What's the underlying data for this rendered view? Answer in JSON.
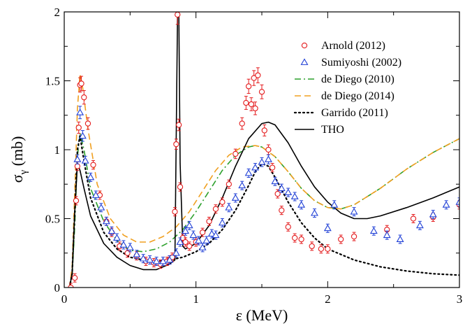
{
  "chart_data": {
    "type": "scatter",
    "xlabel": "ε  (MeV)",
    "ylabel_main": "σ",
    "ylabel_sub": "γ",
    "ylabel_unit": "(mb)",
    "xlim": [
      0,
      3
    ],
    "ylim": [
      0,
      2
    ],
    "x_ticks": [
      0,
      1,
      2,
      3
    ],
    "x_tick_labels": [
      "0",
      "1",
      "2",
      "3"
    ],
    "y_ticks": [
      0,
      0.5,
      1,
      1.5,
      2
    ],
    "y_tick_labels": [
      "0",
      "0.5",
      "1",
      "1.5",
      "2"
    ],
    "grid": false,
    "legend_position": "top-right",
    "series": [
      {
        "name": "Arnold (2012)",
        "kind": "points",
        "marker": "circle",
        "color": "#e41a1c",
        "x": [
          0.05,
          0.08,
          0.09,
          0.1,
          0.11,
          0.12,
          0.13,
          0.15,
          0.18,
          0.22,
          0.27,
          0.32,
          0.36,
          0.42,
          0.48,
          0.55,
          0.62,
          0.68,
          0.73,
          0.78,
          0.8,
          0.82,
          0.84,
          0.85,
          0.86,
          0.87,
          0.88,
          0.9,
          0.92,
          0.95,
          1.0,
          1.05,
          1.1,
          1.15,
          1.2,
          1.25,
          1.3,
          1.35,
          1.38,
          1.4,
          1.42,
          1.44,
          1.45,
          1.47,
          1.5,
          1.52,
          1.55,
          1.58,
          1.62,
          1.65,
          1.7,
          1.75,
          1.8,
          1.88,
          1.95,
          2.0,
          2.1,
          2.2,
          2.45,
          2.65,
          2.8,
          3.0
        ],
        "y": [
          0.0,
          0.07,
          0.63,
          0.88,
          1.16,
          1.47,
          1.48,
          1.38,
          1.19,
          0.89,
          0.67,
          0.48,
          0.4,
          0.3,
          0.25,
          0.23,
          0.19,
          0.18,
          0.17,
          0.19,
          0.2,
          0.22,
          0.55,
          1.04,
          1.98,
          1.18,
          0.73,
          0.36,
          0.33,
          0.3,
          0.33,
          0.4,
          0.48,
          0.57,
          0.62,
          0.75,
          0.97,
          1.19,
          1.34,
          1.46,
          1.33,
          1.52,
          1.3,
          1.54,
          1.42,
          1.14,
          1.0,
          0.87,
          0.68,
          0.56,
          0.44,
          0.36,
          0.35,
          0.3,
          0.28,
          0.28,
          0.35,
          0.37,
          0.42,
          0.5,
          0.51,
          0.6
        ]
      },
      {
        "name": "Sumiyoshi (2002)",
        "kind": "points",
        "marker": "triangle",
        "color": "#1f3fd6",
        "x": [
          0.1,
          0.12,
          0.14,
          0.16,
          0.2,
          0.24,
          0.28,
          0.32,
          0.36,
          0.4,
          0.45,
          0.5,
          0.55,
          0.6,
          0.65,
          0.7,
          0.75,
          0.8,
          0.85,
          0.88,
          0.92,
          0.95,
          0.98,
          1.02,
          1.05,
          1.08,
          1.12,
          1.15,
          1.2,
          1.25,
          1.3,
          1.35,
          1.4,
          1.45,
          1.5,
          1.55,
          1.6,
          1.65,
          1.7,
          1.75,
          1.8,
          1.9,
          2.0,
          2.05,
          2.2,
          2.35,
          2.45,
          2.55,
          2.7,
          2.8,
          2.9,
          3.0
        ],
        "y": [
          0.93,
          1.27,
          1.1,
          0.92,
          0.8,
          0.67,
          0.58,
          0.48,
          0.41,
          0.36,
          0.31,
          0.29,
          0.24,
          0.21,
          0.2,
          0.19,
          0.19,
          0.2,
          0.25,
          0.33,
          0.41,
          0.45,
          0.38,
          0.34,
          0.29,
          0.34,
          0.39,
          0.38,
          0.47,
          0.58,
          0.65,
          0.74,
          0.83,
          0.87,
          0.91,
          0.93,
          0.77,
          0.72,
          0.69,
          0.66,
          0.6,
          0.54,
          0.43,
          0.6,
          0.55,
          0.41,
          0.38,
          0.35,
          0.45,
          0.53,
          0.6,
          0.62
        ]
      },
      {
        "name": "de Diego (2010)",
        "kind": "line",
        "style": "dashdot",
        "color": "#2ca02c",
        "x": [
          0.04,
          0.06,
          0.08,
          0.1,
          0.12,
          0.15,
          0.2,
          0.3,
          0.4,
          0.5,
          0.6,
          0.7,
          0.8,
          0.9,
          1.0,
          1.1,
          1.2,
          1.3,
          1.4,
          1.45,
          1.5,
          1.6,
          1.7,
          1.8,
          1.9,
          2.0,
          2.1,
          2.2,
          2.4,
          2.6,
          2.8,
          3.0
        ],
        "y": [
          0.0,
          0.08,
          0.45,
          0.95,
          1.12,
          1.0,
          0.72,
          0.48,
          0.34,
          0.27,
          0.26,
          0.28,
          0.33,
          0.42,
          0.55,
          0.7,
          0.85,
          0.96,
          1.02,
          1.03,
          1.02,
          0.95,
          0.84,
          0.72,
          0.63,
          0.58,
          0.57,
          0.6,
          0.72,
          0.86,
          0.98,
          1.08
        ]
      },
      {
        "name": "de Diego (2014)",
        "kind": "line",
        "style": "dashed",
        "color": "#f0a020",
        "x": [
          0.04,
          0.06,
          0.08,
          0.1,
          0.12,
          0.14,
          0.18,
          0.25,
          0.35,
          0.45,
          0.55,
          0.65,
          0.75,
          0.85,
          0.95,
          1.05,
          1.15,
          1.25,
          1.35,
          1.45,
          1.5,
          1.6,
          1.7,
          1.8,
          1.9,
          2.0,
          2.1,
          2.2,
          2.4,
          2.6,
          2.8,
          3.0
        ],
        "y": [
          0.0,
          0.15,
          0.7,
          1.3,
          1.55,
          1.45,
          1.15,
          0.75,
          0.5,
          0.38,
          0.33,
          0.33,
          0.37,
          0.44,
          0.55,
          0.7,
          0.85,
          0.96,
          1.02,
          1.03,
          1.02,
          0.95,
          0.84,
          0.72,
          0.63,
          0.58,
          0.57,
          0.6,
          0.72,
          0.86,
          0.98,
          1.08
        ]
      },
      {
        "name": "Garrido (2011)",
        "kind": "line",
        "style": "dotted",
        "color": "#000000",
        "x": [
          0.04,
          0.06,
          0.08,
          0.1,
          0.12,
          0.15,
          0.2,
          0.3,
          0.4,
          0.5,
          0.6,
          0.7,
          0.8,
          0.9,
          1.0,
          1.1,
          1.2,
          1.3,
          1.4,
          1.45,
          1.5,
          1.55,
          1.6,
          1.7,
          1.8,
          1.9,
          2.0,
          2.2,
          2.4,
          2.6,
          2.8,
          3.0
        ],
        "y": [
          0.0,
          0.1,
          0.55,
          1.0,
          1.1,
          0.92,
          0.65,
          0.4,
          0.28,
          0.22,
          0.2,
          0.19,
          0.2,
          0.22,
          0.26,
          0.32,
          0.42,
          0.56,
          0.74,
          0.84,
          0.9,
          0.88,
          0.8,
          0.62,
          0.47,
          0.36,
          0.28,
          0.2,
          0.15,
          0.12,
          0.1,
          0.09
        ]
      },
      {
        "name": "THO",
        "kind": "line",
        "style": "solid",
        "color": "#000000",
        "x": [
          0.04,
          0.06,
          0.08,
          0.1,
          0.12,
          0.15,
          0.2,
          0.3,
          0.4,
          0.5,
          0.6,
          0.7,
          0.8,
          0.84,
          0.86,
          0.87,
          0.88,
          0.9,
          0.92,
          1.0,
          1.1,
          1.2,
          1.3,
          1.4,
          1.5,
          1.55,
          1.6,
          1.7,
          1.8,
          1.9,
          2.0,
          2.1,
          2.2,
          2.3,
          2.4,
          2.6,
          2.8,
          3.0
        ],
        "y": [
          0.0,
          0.1,
          0.55,
          0.9,
          0.85,
          0.72,
          0.52,
          0.32,
          0.22,
          0.16,
          0.13,
          0.13,
          0.17,
          0.2,
          2.0,
          2.0,
          0.9,
          0.3,
          0.28,
          0.32,
          0.45,
          0.65,
          0.88,
          1.08,
          1.19,
          1.2,
          1.18,
          1.05,
          0.88,
          0.73,
          0.62,
          0.54,
          0.5,
          0.5,
          0.52,
          0.58,
          0.65,
          0.73
        ]
      }
    ]
  }
}
